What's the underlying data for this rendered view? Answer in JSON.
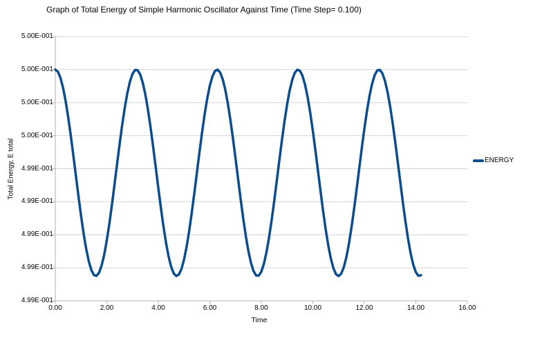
{
  "background": "#ffffff",
  "colors": {
    "series_blue": "#0b4c8c",
    "gridline_gray": "#d4d4d4",
    "axis_gray": "#b0b0b0",
    "text_black": "#000000"
  },
  "chart_data": {
    "type": "line",
    "title": "Graph of Total Energy of Simple Harmonic Oscillator Against Time (Time Step= 0.100)",
    "xlabel": "Time",
    "ylabel": "Total Energy, E total",
    "grid": "horizontal-only",
    "x_axis": {
      "min": 0,
      "max": 16,
      "major_unit": 2,
      "tick_labels": [
        "0.00",
        "2.00",
        "4.00",
        "6.00",
        "8.00",
        "10.00",
        "12.00",
        "14.00",
        "16.00"
      ]
    },
    "y_axis": {
      "min": 0.4986,
      "max": 0.5002,
      "major_unit": 0.0002,
      "tick_values_top_to_bottom": [
        0.5002,
        0.5,
        0.4998,
        0.4996,
        0.4994,
        0.4992,
        0.499,
        0.4988,
        0.4986
      ],
      "tick_labels": [
        "5.00E-001",
        "5.00E-001",
        "5.00E-001",
        "5.00E-001",
        "4.99E-001",
        "4.99E-001",
        "4.99E-001",
        "4.99E-001",
        "4.99E-001"
      ]
    },
    "legend": {
      "position": "right",
      "entries": [
        {
          "label": "ENERGY",
          "color": "#0b4c8c"
        }
      ]
    },
    "series": [
      {
        "name": "ENERGY",
        "color": "#0b4c8c",
        "line_width": 3.5,
        "model": "E(t) = 0.5 - 0.00125*sin(t)^2",
        "base": 0.5,
        "dip": 0.00125,
        "t_start": 0,
        "t_end": 14.2,
        "t_step": 0.1,
        "peak_value": 0.5,
        "trough_value": 0.49875,
        "peak_times": [
          0,
          3.1416,
          6.2832,
          9.4248,
          12.5664
        ],
        "trough_times": [
          1.5708,
          4.7124,
          7.854,
          10.9956,
          14.1372
        ]
      }
    ]
  }
}
